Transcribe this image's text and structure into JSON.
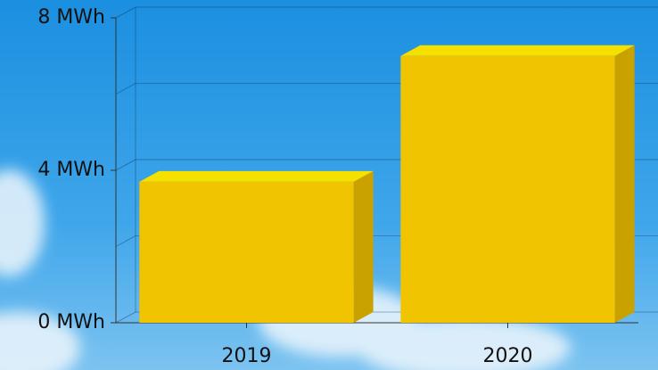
{
  "chart_data": {
    "type": "bar3d",
    "categories": [
      "2019",
      "2020"
    ],
    "values": [
      3.7,
      7.0
    ],
    "color": "#f0c400",
    "ylim": [
      0,
      8
    ],
    "yticks": [
      {
        "value": 0,
        "label": "0 MWh"
      },
      {
        "value": 4,
        "label": "4 MWh"
      },
      {
        "value": 8,
        "label": "8 MWh"
      }
    ],
    "grid": true
  }
}
